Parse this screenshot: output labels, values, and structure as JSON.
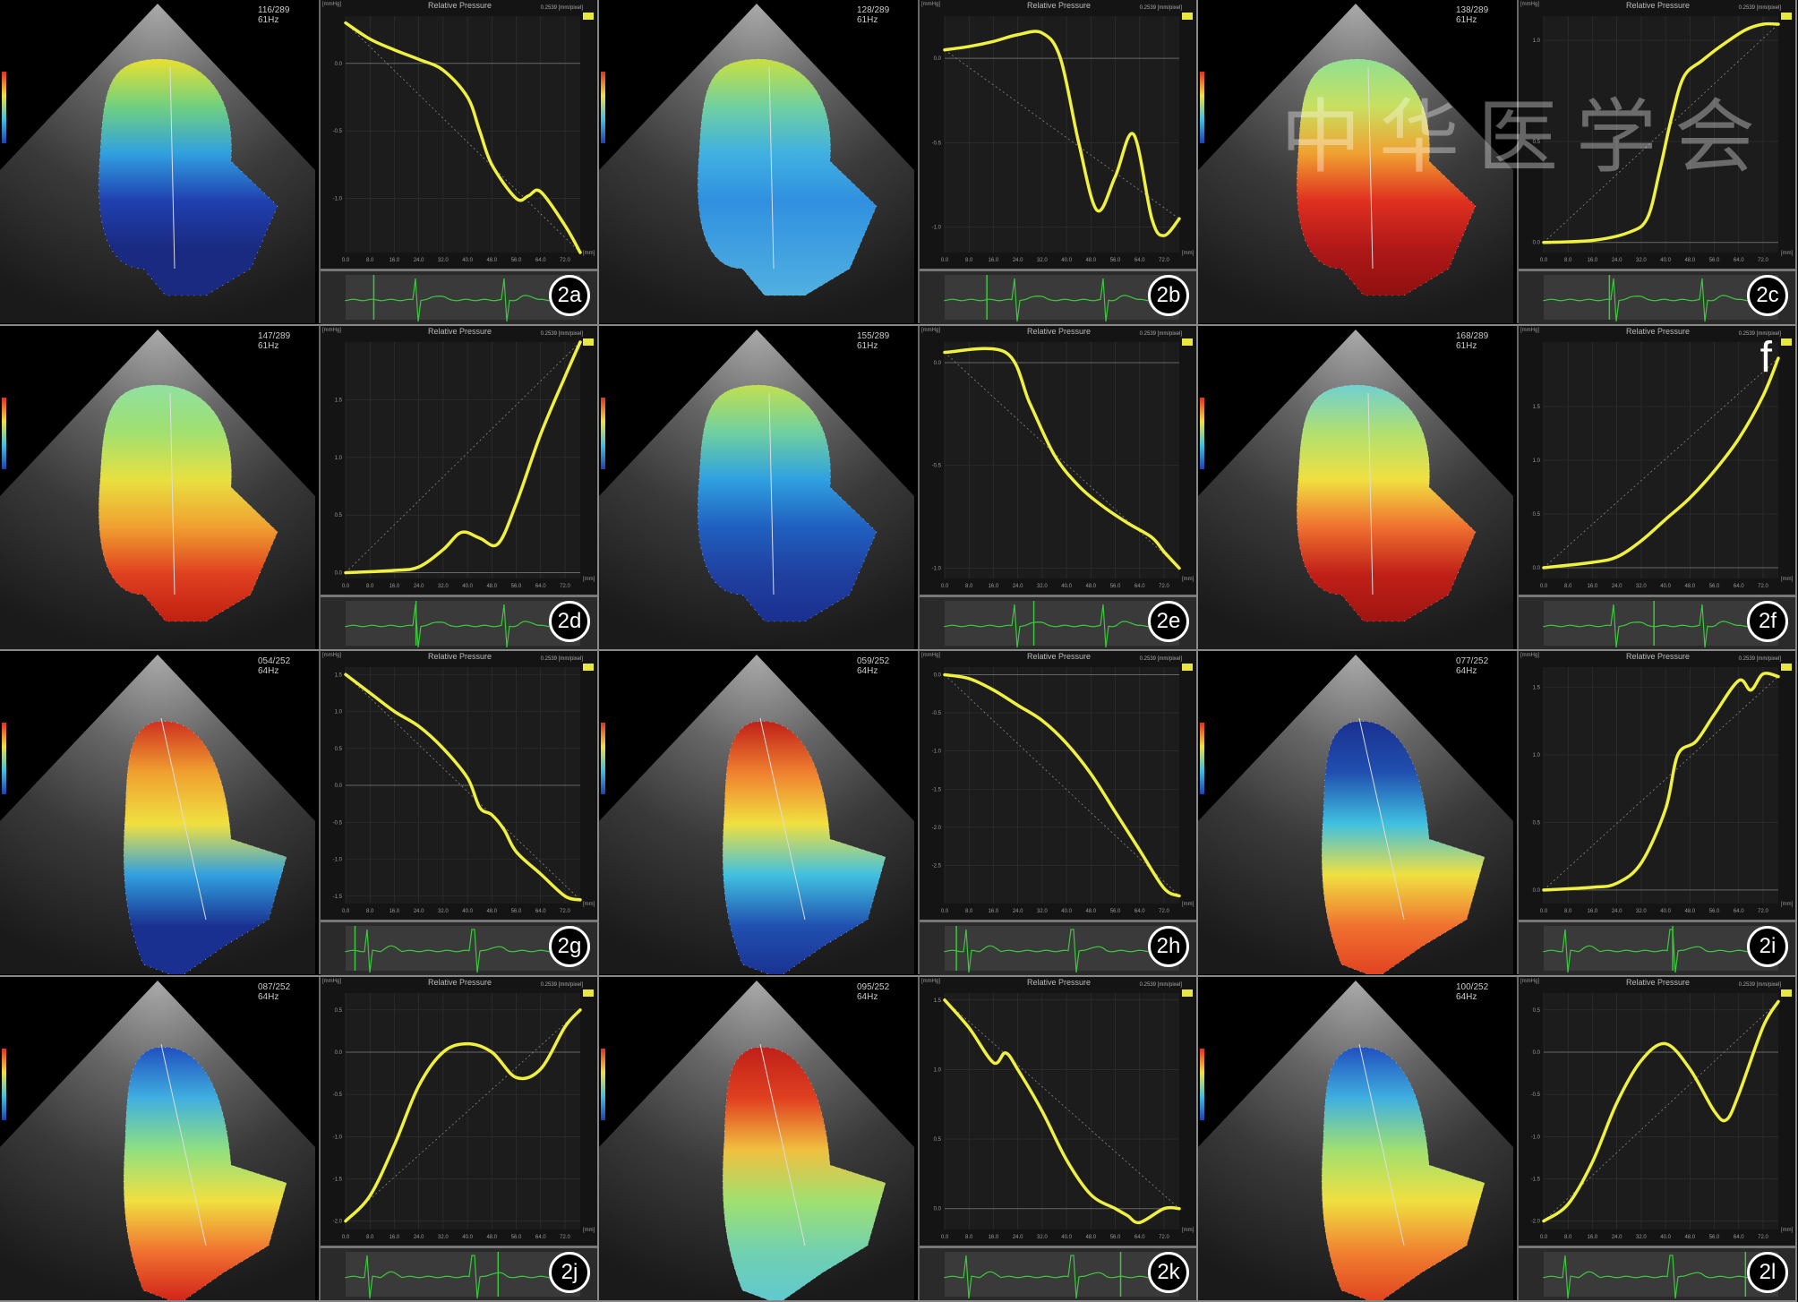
{
  "watermark": "中华医学会",
  "chart_common": {
    "title": "Relative Pressure",
    "y_unit": "[mmHg]",
    "x_unit": "[mm]",
    "scale": "0.2539 [mm/pixel]",
    "x_ticks": [
      "0.0",
      "8.0",
      "16.0",
      "24.0",
      "32.0",
      "40.0",
      "48.0",
      "56.0",
      "64.0",
      "72.0"
    ]
  },
  "colors": {
    "curve": "#f0f040",
    "ecg": "#3cc83c",
    "grid": "#333333"
  },
  "panels": [
    {
      "label": "2a",
      "frame": "116/289",
      "rate": "61Hz",
      "lv_colors": [
        "#e8e030",
        "#70d080",
        "#30a0e0",
        "#2040b0",
        "#1a2a80",
        "#1a2a80"
      ],
      "ecg_cursor": 0.12,
      "chart_data": {
        "type": "line",
        "ylim": [
          -1.4,
          0.35
        ],
        "y_ticks": [
          0.0,
          -0.5,
          -1.0
        ],
        "xlim": [
          0,
          77
        ],
        "x": [
          0,
          8,
          16,
          24,
          32,
          40,
          44,
          48,
          56,
          60,
          64,
          72,
          77
        ],
        "y": [
          0.3,
          0.18,
          0.1,
          0.03,
          -0.05,
          -0.25,
          -0.5,
          -0.75,
          -1.0,
          -0.98,
          -0.95,
          -1.2,
          -1.4
        ]
      }
    },
    {
      "label": "2b",
      "frame": "128/289",
      "rate": "61Hz",
      "lv_colors": [
        "#c8e040",
        "#70d0a0",
        "#40b0e0",
        "#3090e0",
        "#40a0e0",
        "#50b0e0"
      ],
      "ecg_cursor": 0.18,
      "chart_data": {
        "type": "line",
        "ylim": [
          -1.15,
          0.25
        ],
        "y_ticks": [
          0.0,
          -0.5,
          -1.0
        ],
        "xlim": [
          0,
          77
        ],
        "x": [
          0,
          8,
          16,
          24,
          32,
          38,
          44,
          50,
          56,
          62,
          68,
          72,
          77
        ],
        "y": [
          0.05,
          0.07,
          0.1,
          0.14,
          0.15,
          0.0,
          -0.5,
          -0.9,
          -0.7,
          -0.45,
          -0.95,
          -1.05,
          -0.95
        ]
      }
    },
    {
      "label": "2c",
      "frame": "138/289",
      "rate": "61Hz",
      "lv_colors": [
        "#90e090",
        "#c8e060",
        "#f0a030",
        "#e03020",
        "#b01818",
        "#901010"
      ],
      "ecg_cursor": 0.28,
      "chart_data": {
        "type": "line",
        "ylim": [
          -0.05,
          1.12
        ],
        "y_ticks": [
          0.0,
          0.5,
          1.0
        ],
        "xlim": [
          0,
          77
        ],
        "x": [
          0,
          16,
          28,
          34,
          38,
          42,
          46,
          52,
          58,
          66,
          72,
          77
        ],
        "y": [
          0,
          0.01,
          0.05,
          0.12,
          0.35,
          0.62,
          0.82,
          0.9,
          0.97,
          1.05,
          1.08,
          1.08
        ]
      }
    },
    {
      "label": "2d",
      "frame": "147/289",
      "rate": "61Hz",
      "lv_colors": [
        "#90e0a0",
        "#a0e070",
        "#e8e040",
        "#f0a030",
        "#e04020",
        "#c02010"
      ],
      "ecg_cursor": 0.3,
      "chart_data": {
        "type": "line",
        "ylim": [
          -0.05,
          2.0
        ],
        "y_ticks": [
          0.0,
          0.5,
          1.0,
          1.5
        ],
        "xlim": [
          0,
          77
        ],
        "x": [
          0,
          16,
          24,
          32,
          38,
          44,
          50,
          56,
          64,
          72,
          77
        ],
        "y": [
          0,
          0.02,
          0.05,
          0.2,
          0.35,
          0.3,
          0.25,
          0.6,
          1.2,
          1.7,
          2.0
        ]
      }
    },
    {
      "label": "2e",
      "frame": "155/289",
      "rate": "61Hz",
      "lv_colors": [
        "#c0e050",
        "#70d0a0",
        "#30a0e0",
        "#2060c0",
        "#2040a0",
        "#1a3090"
      ],
      "ecg_cursor": 0.38,
      "chart_data": {
        "type": "line",
        "ylim": [
          -1.05,
          0.1
        ],
        "y_ticks": [
          0.0,
          -0.5,
          -1.0
        ],
        "xlim": [
          0,
          77
        ],
        "x": [
          0,
          20,
          28,
          36,
          44,
          52,
          60,
          68,
          72,
          77
        ],
        "y": [
          0.05,
          0.05,
          -0.2,
          -0.45,
          -0.6,
          -0.7,
          -0.78,
          -0.85,
          -0.92,
          -1.0
        ]
      }
    },
    {
      "label": "2f",
      "extra": "f",
      "frame": "168/289",
      "rate": "61Hz",
      "lv_colors": [
        "#70d0d0",
        "#b0e070",
        "#f0e040",
        "#f07030",
        "#c02018",
        "#a01410"
      ],
      "ecg_cursor": 0.47,
      "chart_data": {
        "type": "line",
        "ylim": [
          -0.1,
          2.1
        ],
        "y_ticks": [
          0.0,
          0.5,
          1.0,
          1.5
        ],
        "xlim": [
          0,
          77
        ],
        "x": [
          0,
          16,
          24,
          32,
          40,
          48,
          56,
          64,
          72,
          77
        ],
        "y": [
          0,
          0.05,
          0.1,
          0.25,
          0.45,
          0.65,
          0.9,
          1.2,
          1.6,
          1.95
        ]
      }
    },
    {
      "label": "2g",
      "frame": "054/252",
      "rate": "64Hz",
      "lv_colors": [
        "#d03020",
        "#f0a030",
        "#f0e040",
        "#30a0e0",
        "#1a3090",
        "#1a3090"
      ],
      "ecg_cursor": 0.04,
      "chart_data": {
        "type": "line",
        "ylim": [
          -1.6,
          1.6
        ],
        "y_ticks": [
          1.5,
          1.0,
          0.5,
          0.0,
          -0.5,
          -1.0,
          -1.5
        ],
        "xlim": [
          0,
          77
        ],
        "x": [
          0,
          8,
          16,
          24,
          32,
          40,
          44,
          48,
          52,
          56,
          64,
          72,
          77
        ],
        "y": [
          1.5,
          1.25,
          1.0,
          0.8,
          0.5,
          0.1,
          -0.3,
          -0.4,
          -0.6,
          -0.9,
          -1.2,
          -1.5,
          -1.55
        ]
      }
    },
    {
      "label": "2h",
      "frame": "059/252",
      "rate": "64Hz",
      "lv_colors": [
        "#c02018",
        "#f08030",
        "#f0e040",
        "#40c0e0",
        "#2050b0",
        "#1a3090"
      ],
      "ecg_cursor": 0.05,
      "chart_data": {
        "type": "line",
        "ylim": [
          -3.0,
          0.1
        ],
        "y_ticks": [
          0.0,
          -0.5,
          -1.0,
          -1.5,
          -2.0,
          -2.5
        ],
        "xlim": [
          0,
          77
        ],
        "x": [
          0,
          8,
          16,
          24,
          32,
          40,
          48,
          56,
          64,
          72,
          77
        ],
        "y": [
          0,
          -0.05,
          -0.2,
          -0.4,
          -0.6,
          -0.9,
          -1.3,
          -1.8,
          -2.3,
          -2.8,
          -2.9
        ]
      }
    },
    {
      "label": "2i",
      "frame": "077/252",
      "rate": "64Hz",
      "lv_colors": [
        "#1a3090",
        "#2050b0",
        "#40c0e0",
        "#f0e040",
        "#f07030",
        "#e04020"
      ],
      "ecg_cursor": 0.55,
      "chart_data": {
        "type": "line",
        "ylim": [
          -0.1,
          1.65
        ],
        "y_ticks": [
          0.0,
          0.5,
          1.0,
          1.5
        ],
        "xlim": [
          0,
          77
        ],
        "x": [
          0,
          16,
          24,
          32,
          40,
          44,
          50,
          56,
          64,
          68,
          72,
          77
        ],
        "y": [
          0,
          0.02,
          0.05,
          0.2,
          0.6,
          1.0,
          1.1,
          1.3,
          1.55,
          1.48,
          1.6,
          1.58
        ]
      }
    },
    {
      "label": "2j",
      "frame": "087/252",
      "rate": "64Hz",
      "lv_colors": [
        "#2050c0",
        "#40b0e0",
        "#90e080",
        "#f0e040",
        "#f07030",
        "#d02018"
      ],
      "ecg_cursor": 0.65,
      "chart_data": {
        "type": "line",
        "ylim": [
          -2.1,
          0.7
        ],
        "y_ticks": [
          0.5,
          0.0,
          -0.5,
          -1.0,
          -1.5,
          -2.0
        ],
        "xlim": [
          0,
          77
        ],
        "x": [
          0,
          8,
          16,
          24,
          32,
          40,
          48,
          56,
          64,
          72,
          77
        ],
        "y": [
          -2.0,
          -1.7,
          -1.1,
          -0.4,
          0.0,
          0.1,
          0.0,
          -0.3,
          -0.2,
          0.3,
          0.5
        ]
      }
    },
    {
      "label": "2k",
      "frame": "095/252",
      "rate": "64Hz",
      "lv_colors": [
        "#c02018",
        "#e04020",
        "#f0c040",
        "#a0e070",
        "#70d0b0",
        "#60c8d0"
      ],
      "ecg_cursor": 0.75,
      "chart_data": {
        "type": "line",
        "ylim": [
          -0.15,
          1.55
        ],
        "y_ticks": [
          0.0,
          0.5,
          1.0,
          1.5
        ],
        "xlim": [
          0,
          77
        ],
        "x": [
          0,
          8,
          16,
          20,
          24,
          32,
          40,
          48,
          56,
          60,
          64,
          72,
          77
        ],
        "y": [
          1.5,
          1.3,
          1.05,
          1.12,
          1.0,
          0.7,
          0.35,
          0.1,
          0.0,
          -0.05,
          -0.1,
          0.0,
          0.0
        ]
      }
    },
    {
      "label": "2l",
      "frame": "100/252",
      "rate": "64Hz",
      "lv_colors": [
        "#2050c0",
        "#40b0e0",
        "#a0e070",
        "#f0e040",
        "#f08030",
        "#e04020"
      ],
      "ecg_cursor": 0.86,
      "chart_data": {
        "type": "line",
        "ylim": [
          -2.1,
          0.7
        ],
        "y_ticks": [
          0.5,
          0.0,
          -0.5,
          -1.0,
          -1.5,
          -2.0
        ],
        "xlim": [
          0,
          77
        ],
        "x": [
          0,
          8,
          16,
          24,
          32,
          40,
          48,
          56,
          60,
          64,
          72,
          77
        ],
        "y": [
          -2.0,
          -1.8,
          -1.3,
          -0.6,
          -0.1,
          0.1,
          -0.2,
          -0.7,
          -0.8,
          -0.5,
          0.3,
          0.6
        ]
      }
    }
  ]
}
